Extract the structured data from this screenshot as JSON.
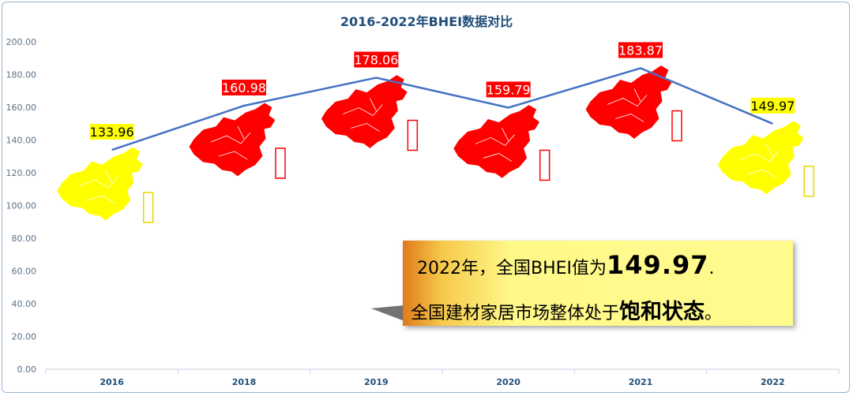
{
  "chart_data": {
    "type": "line",
    "title": "2016-2022年BHEI数据对比",
    "categories": [
      "2016",
      "2018",
      "2019",
      "2020",
      "2021",
      "2022"
    ],
    "values": [
      133.96,
      160.98,
      178.06,
      159.79,
      183.87,
      149.97
    ],
    "data_labels": [
      "133.96",
      "160.98",
      "178.06",
      "159.79",
      "183.87",
      "149.97"
    ],
    "ylim": [
      0,
      200
    ],
    "yticks": [
      "0.00",
      "20.00",
      "40.00",
      "60.00",
      "80.00",
      "100.00",
      "120.00",
      "140.00",
      "160.00",
      "180.00",
      "200.00"
    ],
    "ytick_values": [
      0,
      20,
      40,
      60,
      80,
      100,
      120,
      140,
      160,
      180,
      200
    ],
    "line_color": "#4472c4",
    "point_status": [
      "yellow",
      "red",
      "red",
      "red",
      "red",
      "yellow"
    ],
    "status_colors": {
      "yellow": "#ffff00",
      "red": "#ff0000"
    },
    "label_text_colors": {
      "yellow": "#000000",
      "red": "#ffffff"
    }
  },
  "callout": {
    "line1_prefix": "2022年，全国BHEI值为",
    "line1_value": "149.97",
    "line1_suffix": ".",
    "line2_prefix": "全国建材家居市场整体处于",
    "line2_emphasis": "饱和状态",
    "line2_suffix": "。"
  }
}
